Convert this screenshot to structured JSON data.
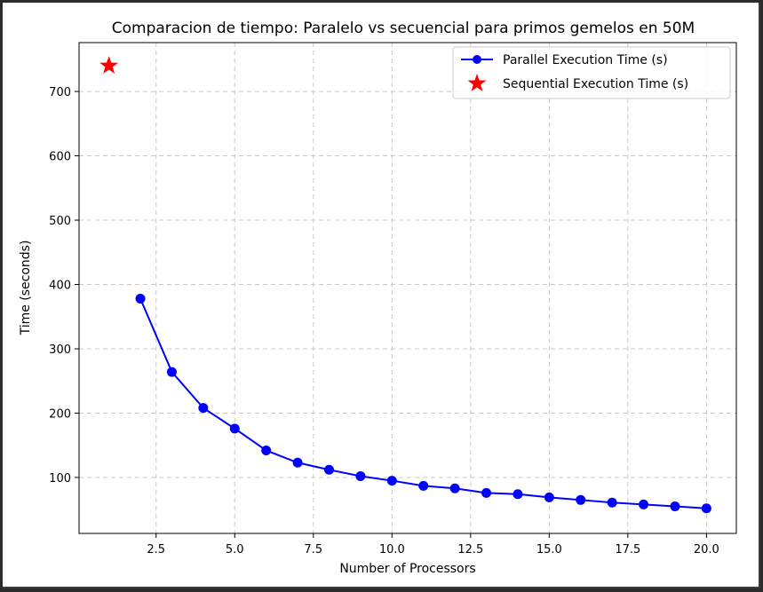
{
  "chart_data": {
    "type": "line",
    "title": "Comparacion de tiempo: Paralelo vs secuencial para primos gemelos en 50M",
    "xlabel": "Number of Processors",
    "ylabel": "Time (seconds)",
    "xlim": [
      0.05,
      20.95
    ],
    "ylim": [
      13,
      776
    ],
    "x_ticks": [
      2.5,
      5.0,
      7.5,
      10.0,
      12.5,
      15.0,
      17.5,
      20.0
    ],
    "x_tick_labels": [
      "2.5",
      "5.0",
      "7.5",
      "10.0",
      "12.5",
      "15.0",
      "17.5",
      "20.0"
    ],
    "y_ticks": [
      100,
      200,
      300,
      400,
      500,
      600,
      700
    ],
    "y_tick_labels": [
      "100",
      "200",
      "300",
      "400",
      "500",
      "600",
      "700"
    ],
    "grid": true,
    "grid_style": "dashed",
    "legend_position": "upper-right",
    "series": [
      {
        "name": "Parallel Execution Time (s)",
        "marker": "circle",
        "color": "#0000ff",
        "x": [
          2,
          3,
          4,
          5,
          6,
          7,
          8,
          9,
          10,
          11,
          12,
          13,
          14,
          15,
          16,
          17,
          18,
          19,
          20
        ],
        "values": [
          378,
          264,
          208,
          176,
          142,
          123,
          112,
          102,
          95,
          87,
          83,
          76,
          74,
          69,
          65,
          61,
          58,
          55,
          52
        ]
      },
      {
        "name": "Sequential Execution Time (s)",
        "marker": "star",
        "color": "#ff0000",
        "x": [
          1
        ],
        "values": [
          740
        ]
      }
    ]
  }
}
